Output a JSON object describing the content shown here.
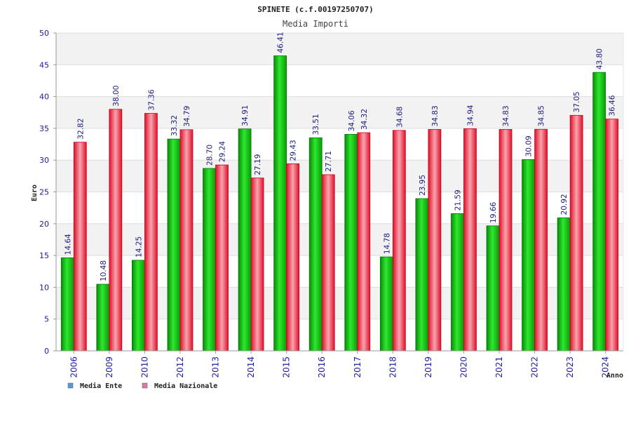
{
  "chart_data": {
    "type": "bar",
    "title": "SPINETE (c.f.00197250707)",
    "subtitle": "Media Importi",
    "xlabel": "Anno",
    "ylabel": "Euro",
    "ylim": [
      0,
      50
    ],
    "yticks": [
      0,
      5,
      10,
      15,
      20,
      25,
      30,
      35,
      40,
      45,
      50
    ],
    "grid": true,
    "legend_position": "bottom-left",
    "categories": [
      "2006",
      "2009",
      "2010",
      "2012",
      "2013",
      "2014",
      "2015",
      "2016",
      "2017",
      "2018",
      "2019",
      "2020",
      "2021",
      "2022",
      "2023",
      "2024"
    ],
    "series": [
      {
        "name": "Media Ente",
        "legend_color": "#5b9bd5",
        "bar_color": "#12b812",
        "values": [
          14.64,
          10.48,
          14.25,
          33.32,
          28.7,
          34.91,
          46.41,
          33.51,
          34.06,
          14.78,
          23.95,
          21.59,
          19.66,
          30.09,
          20.92,
          43.8
        ],
        "labels": [
          "14.64",
          "10.48",
          "14.25",
          "33.32",
          "28.70",
          "34.91",
          "46.41",
          "33.51",
          "34.06",
          "14.78",
          "23.95",
          "21.59",
          "19.66",
          "30.09",
          "20.92",
          "43.80"
        ]
      },
      {
        "name": "Media Nazionale",
        "legend_color": "#d97aa8",
        "bar_color": "#e8283c",
        "values": [
          32.82,
          38.0,
          37.36,
          34.79,
          29.24,
          27.19,
          29.43,
          27.71,
          34.32,
          34.68,
          34.83,
          34.94,
          34.83,
          34.85,
          37.05,
          36.46
        ],
        "labels": [
          "32.82",
          "38.00",
          "37.36",
          "34.79",
          "29.24",
          "27.19",
          "29.43",
          "27.71",
          "34.32",
          "34.68",
          "34.83",
          "34.94",
          "34.83",
          "34.85",
          "37.05",
          "36.46"
        ]
      }
    ]
  }
}
